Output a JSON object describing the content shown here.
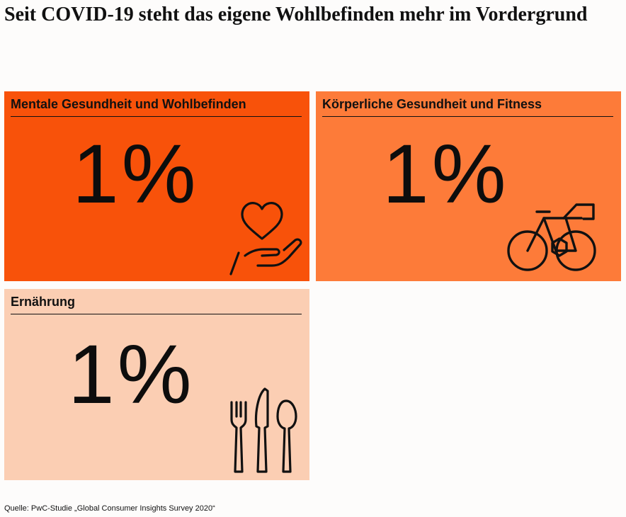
{
  "title": "Seit COVID-19 steht das eigene Wohlbefinden mehr im Vordergrund",
  "cards": [
    {
      "label": "Mentale Gesundheit und Wohlbefinden",
      "value": "1%",
      "color": "#f8520a",
      "icon": "heart-in-hand-icon"
    },
    {
      "label": "Körperliche Gesundheit und Fitness",
      "value": "1%",
      "color": "#fd7b39",
      "icon": "bicycle-icon"
    },
    {
      "label": "Ernährung",
      "value": "1%",
      "color": "#fbceb3",
      "icon": "cutlery-icon"
    }
  ],
  "source": "Quelle: PwC-Studie „Global Consumer Insights Survey 2020“"
}
